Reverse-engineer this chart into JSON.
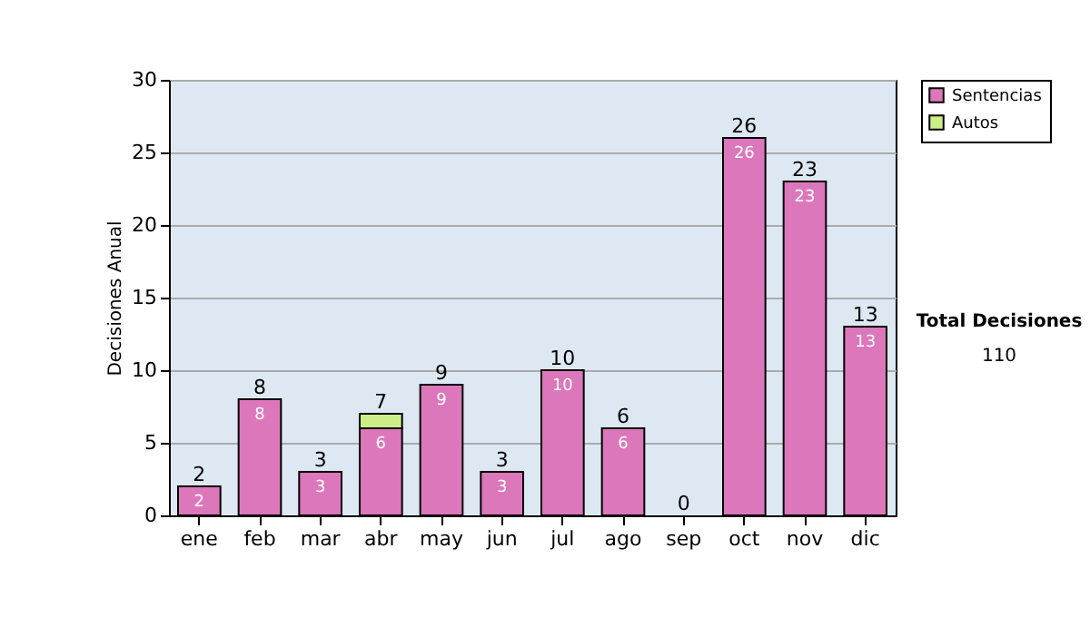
{
  "chart_data": {
    "type": "bar",
    "stacked": true,
    "ylabel": "Decisiones Anual",
    "categories": [
      "ene",
      "feb",
      "mar",
      "abr",
      "may",
      "jun",
      "jul",
      "ago",
      "sep",
      "oct",
      "nov",
      "dic"
    ],
    "series": [
      {
        "name": "Sentencias",
        "color": "#dd77bb",
        "values": [
          2,
          8,
          3,
          6,
          9,
          3,
          10,
          6,
          0,
          26,
          23,
          13
        ],
        "value_labels": [
          "2",
          "8",
          "3",
          "6",
          "9",
          "3",
          "10",
          "6",
          null,
          "26",
          "23",
          "13"
        ]
      },
      {
        "name": "Autos",
        "color": "#ccee88",
        "values": [
          0,
          0,
          0,
          1,
          0,
          0,
          0,
          0,
          0,
          0,
          0,
          0
        ]
      }
    ],
    "totals": [
      "2",
      "8",
      "3",
      "7",
      "9",
      "3",
      "10",
      "6",
      "0",
      "26",
      "23",
      "13"
    ],
    "ylim": [
      0,
      30
    ],
    "yticks": [
      0,
      5,
      10,
      15,
      20,
      25,
      30
    ],
    "grid": "y",
    "legend": "right",
    "annotations": [
      "Total Decisiones",
      "110"
    ]
  }
}
